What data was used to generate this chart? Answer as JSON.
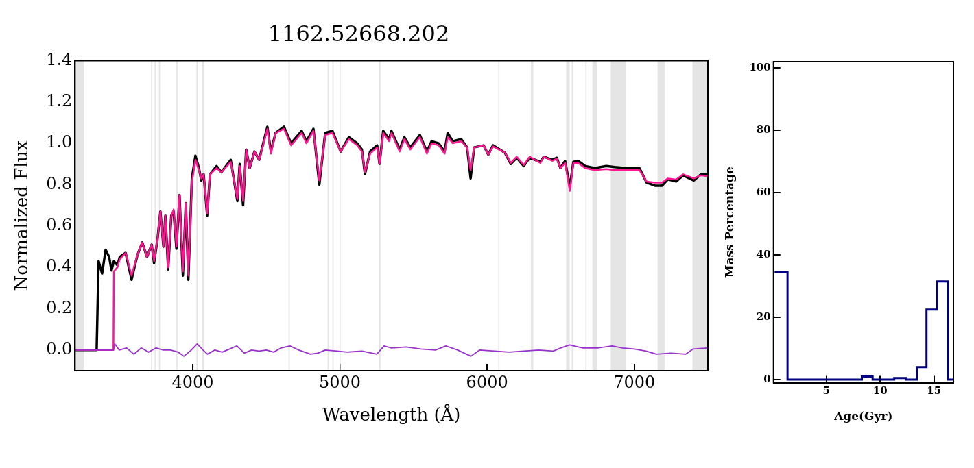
{
  "chart_data": [
    {
      "type": "line",
      "title": "1162.52668.202",
      "xlabel": "Wavelength (Å)",
      "ylabel": "Normalized Flux",
      "xlim": [
        3200,
        7500
      ],
      "xticks": [
        4000,
        5000,
        6000,
        7000
      ],
      "ylim": [
        -0.1,
        1.4
      ],
      "yticks": [
        {
          "value": 0,
          "label": "0.0"
        },
        0.2,
        0.4,
        0.6,
        0.8,
        {
          "value": 1,
          "label": "1.0"
        },
        1.2,
        1.4
      ],
      "grid": false,
      "legend": false,
      "marker": "none",
      "line_style": "solid",
      "bands": [
        {
          "axis": "x",
          "from": 3200,
          "to": 3260,
          "color": "#e5e5e5"
        },
        {
          "axis": "x",
          "from": 3717,
          "to": 3725,
          "color": "#e5e5e5"
        },
        {
          "axis": "x",
          "from": 3741,
          "to": 3749,
          "color": "#e5e5e5"
        },
        {
          "axis": "x",
          "from": 3770,
          "to": 3778,
          "color": "#e5e5e5"
        },
        {
          "axis": "x",
          "from": 3889,
          "to": 3897,
          "color": "#e5e5e5"
        },
        {
          "axis": "x",
          "from": 4025,
          "to": 4033,
          "color": "#e5e5e5"
        },
        {
          "axis": "x",
          "from": 4065,
          "to": 4077,
          "color": "#e5e5e5"
        },
        {
          "axis": "x",
          "from": 4651,
          "to": 4659,
          "color": "#e5e5e5"
        },
        {
          "axis": "x",
          "from": 4916,
          "to": 4924,
          "color": "#e5e5e5"
        },
        {
          "axis": "x",
          "from": 4949,
          "to": 4957,
          "color": "#e5e5e5"
        },
        {
          "axis": "x",
          "from": 4997,
          "to": 5005,
          "color": "#e5e5e5"
        },
        {
          "axis": "x",
          "from": 5264,
          "to": 5276,
          "color": "#e5e5e5"
        },
        {
          "axis": "x",
          "from": 6076,
          "to": 6084,
          "color": "#e5e5e5"
        },
        {
          "axis": "x",
          "from": 6298,
          "to": 6314,
          "color": "#e5e5e5"
        },
        {
          "axis": "x",
          "from": 6537,
          "to": 6561,
          "color": "#e5e5e5"
        },
        {
          "axis": "x",
          "from": 6575,
          "to": 6585,
          "color": "#e5e5e5"
        },
        {
          "axis": "x",
          "from": 6668,
          "to": 6676,
          "color": "#e5e5e5"
        },
        {
          "axis": "x",
          "from": 6715,
          "to": 6745,
          "color": "#e5e5e5"
        },
        {
          "axis": "x",
          "from": 6840,
          "to": 6942,
          "color": "#e5e5e5"
        },
        {
          "axis": "x",
          "from": 7158,
          "to": 7206,
          "color": "#e5e5e5"
        },
        {
          "axis": "x",
          "from": 7395,
          "to": 7500,
          "color": "#e5e5e5"
        }
      ],
      "series": [
        {
          "color": "#000000",
          "x": [
            3200,
            3347,
            3360,
            3384,
            3408,
            3432,
            3448,
            3464,
            3488,
            3504,
            3544,
            3584,
            3624,
            3657,
            3689,
            3721,
            3737,
            3761,
            3780,
            3801,
            3814,
            3833,
            3854,
            3870,
            3889,
            3910,
            3933,
            3953,
            3970,
            3994,
            4018,
            4042,
            4058,
            4074,
            4098,
            4117,
            4162,
            4194,
            4258,
            4303,
            4319,
            4342,
            4363,
            4387,
            4419,
            4451,
            4507,
            4531,
            4563,
            4620,
            4668,
            4740,
            4772,
            4820,
            4860,
            4900,
            4949,
            5005,
            5061,
            5117,
            5149,
            5170,
            5205,
            5253,
            5269,
            5294,
            5334,
            5350,
            5406,
            5438,
            5478,
            5543,
            5591,
            5623,
            5671,
            5711,
            5732,
            5767,
            5824,
            5864,
            5888,
            5912,
            5976,
            6008,
            6040,
            6120,
            6161,
            6201,
            6249,
            6289,
            6361,
            6385,
            6442,
            6474,
            6498,
            6530,
            6562,
            6586,
            6618,
            6666,
            6730,
            6810,
            6867,
            6939,
            7035,
            7084,
            7140,
            7188,
            7228,
            7284,
            7332,
            7404,
            7453,
            7500
          ],
          "values": [
            0,
            0,
            0.43,
            0.37,
            0.485,
            0.45,
            0.385,
            0.43,
            0.41,
            0.45,
            0.47,
            0.34,
            0.46,
            0.52,
            0.45,
            0.51,
            0.42,
            0.54,
            0.67,
            0.5,
            0.65,
            0.39,
            0.65,
            0.67,
            0.49,
            0.75,
            0.36,
            0.71,
            0.34,
            0.83,
            0.94,
            0.88,
            0.82,
            0.85,
            0.65,
            0.85,
            0.89,
            0.86,
            0.92,
            0.72,
            0.9,
            0.7,
            0.97,
            0.88,
            0.96,
            0.92,
            1.08,
            0.96,
            1.05,
            1.08,
            1.0,
            1.06,
            1.01,
            1.07,
            0.8,
            1.05,
            1.06,
            0.96,
            1.03,
            1.0,
            0.97,
            0.85,
            0.96,
            0.99,
            0.9,
            1.06,
            1.02,
            1.06,
            0.97,
            1.03,
            0.98,
            1.04,
            0.96,
            1.01,
            1.0,
            0.96,
            1.05,
            1.01,
            1.02,
            0.98,
            0.83,
            0.98,
            0.99,
            0.945,
            0.99,
            0.955,
            0.9,
            0.93,
            0.89,
            0.93,
            0.91,
            0.935,
            0.92,
            0.93,
            0.88,
            0.915,
            0.79,
            0.91,
            0.915,
            0.89,
            0.88,
            0.89,
            0.885,
            0.88,
            0.88,
            0.81,
            0.795,
            0.795,
            0.825,
            0.815,
            0.845,
            0.82,
            0.85,
            0.85
          ]
        },
        {
          "color": "#ff1493",
          "x": [
            3200,
            3461,
            3464,
            3488,
            3504,
            3544,
            3584,
            3624,
            3657,
            3689,
            3721,
            3737,
            3761,
            3780,
            3801,
            3814,
            3833,
            3854,
            3870,
            3889,
            3910,
            3933,
            3953,
            3970,
            3994,
            4018,
            4042,
            4058,
            4074,
            4098,
            4117,
            4162,
            4194,
            4258,
            4303,
            4319,
            4342,
            4363,
            4387,
            4419,
            4451,
            4507,
            4531,
            4563,
            4620,
            4668,
            4740,
            4772,
            4820,
            4860,
            4900,
            4949,
            5005,
            5061,
            5117,
            5149,
            5170,
            5205,
            5253,
            5269,
            5294,
            5334,
            5350,
            5406,
            5438,
            5478,
            5543,
            5591,
            5623,
            5671,
            5711,
            5732,
            5767,
            5824,
            5864,
            5888,
            5912,
            5976,
            6008,
            6040,
            6120,
            6161,
            6201,
            6249,
            6289,
            6361,
            6385,
            6442,
            6474,
            6498,
            6530,
            6562,
            6586,
            6618,
            6666,
            6730,
            6810,
            6867,
            6939,
            7035,
            7084,
            7140,
            7188,
            7228,
            7284,
            7332,
            7404,
            7453,
            7500
          ],
          "values": [
            0,
            0,
            0.38,
            0.4,
            0.44,
            0.47,
            0.36,
            0.46,
            0.52,
            0.45,
            0.51,
            0.43,
            0.54,
            0.67,
            0.5,
            0.65,
            0.4,
            0.65,
            0.68,
            0.5,
            0.75,
            0.38,
            0.71,
            0.36,
            0.81,
            0.92,
            0.87,
            0.83,
            0.85,
            0.66,
            0.85,
            0.88,
            0.86,
            0.91,
            0.73,
            0.89,
            0.72,
            0.97,
            0.88,
            0.96,
            0.92,
            1.07,
            0.95,
            1.05,
            1.07,
            0.99,
            1.05,
            1.0,
            1.06,
            0.82,
            1.04,
            1.05,
            0.96,
            1.02,
            0.99,
            0.96,
            0.86,
            0.95,
            0.98,
            0.9,
            1.05,
            1.01,
            1.05,
            0.96,
            1.02,
            0.97,
            1.03,
            0.95,
            1.0,
            0.99,
            0.95,
            1.03,
            1.0,
            1.01,
            0.98,
            0.87,
            0.98,
            0.99,
            0.945,
            0.985,
            0.955,
            0.905,
            0.935,
            0.895,
            0.935,
            0.905,
            0.935,
            0.915,
            0.925,
            0.88,
            0.905,
            0.77,
            0.905,
            0.905,
            0.88,
            0.87,
            0.875,
            0.87,
            0.87,
            0.87,
            0.815,
            0.81,
            0.81,
            0.83,
            0.825,
            0.85,
            0.83,
            0.845,
            0.84
          ]
        },
        {
          "color": "#9932cc",
          "x": [
            3200,
            3461,
            3470,
            3500,
            3550,
            3600,
            3650,
            3700,
            3750,
            3800,
            3850,
            3900,
            3940,
            3990,
            4030,
            4070,
            4100,
            4150,
            4200,
            4250,
            4300,
            4350,
            4400,
            4450,
            4500,
            4550,
            4600,
            4660,
            4720,
            4800,
            4850,
            4900,
            4980,
            5050,
            5150,
            5250,
            5300,
            5350,
            5450,
            5550,
            5650,
            5720,
            5800,
            5890,
            5950,
            6050,
            6150,
            6250,
            6350,
            6450,
            6500,
            6560,
            6650,
            6750,
            6850,
            6920,
            7000,
            7080,
            7150,
            7250,
            7350,
            7400,
            7500
          ],
          "values": [
            0,
            0,
            0.03,
            0,
            0.01,
            -0.02,
            0.01,
            -0.01,
            0.01,
            0,
            0,
            -0.01,
            -0.03,
            0,
            0.03,
            0,
            -0.02,
            0,
            -0.01,
            0.005,
            0.02,
            -0.015,
            0,
            -0.005,
            0,
            -0.01,
            0.01,
            0.02,
            0,
            -0.02,
            -0.015,
            0,
            -0.005,
            -0.01,
            -0.005,
            -0.02,
            0.02,
            0.01,
            0.015,
            0.005,
            0,
            0.02,
            0,
            -0.03,
            0,
            -0.005,
            -0.01,
            -0.005,
            0,
            -0.005,
            0.01,
            0.025,
            0.01,
            0.01,
            0.02,
            0.01,
            0.005,
            -0.005,
            -0.02,
            -0.015,
            -0.02,
            0.005,
            0.01
          ]
        }
      ]
    },
    {
      "type": "histogram",
      "xlabel": "Age(Gyr)",
      "ylabel": "Mass Percentage",
      "xlim": [
        0.1,
        16.8
      ],
      "xticks": [
        5,
        10,
        15
      ],
      "ylim": [
        -1,
        102
      ],
      "yticks": [
        0,
        20,
        40,
        60,
        80,
        100
      ],
      "grid": false,
      "legend": false,
      "color": "#000080",
      "bins": [
        0.2,
        1.4,
        8.3,
        9.3,
        11.3,
        12.4,
        13.4,
        14.3,
        15.3,
        16.3,
        16.8
      ],
      "values": [
        34.5,
        0,
        1,
        0,
        0.5,
        0,
        4,
        22.5,
        31.5,
        0
      ]
    }
  ]
}
